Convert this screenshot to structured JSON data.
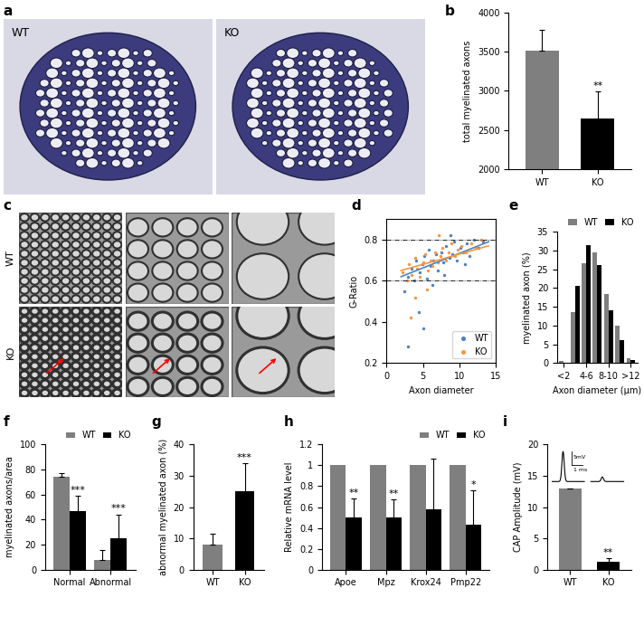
{
  "images": [
    {
      "label": "a",
      "texts": [
        "WT",
        "KO"
      ]
    },
    {
      "label": "c",
      "texts": [
        "WT",
        "KO"
      ]
    }
  ],
  "chart_data": [
    {
      "label": "b",
      "type": "bar",
      "categories": [
        "WT",
        "KO"
      ],
      "values": [
        3510,
        2640
      ],
      "errors": [
        270,
        350
      ],
      "annotations": [
        null,
        "**"
      ],
      "colors": [
        "#7f7f7f",
        "#000000"
      ],
      "y_label": "total myelinated axons",
      "ylim": [
        2000,
        4000
      ],
      "yticks": [
        2000,
        2500,
        3000,
        3500,
        4000
      ]
    },
    {
      "label": "d",
      "type": "scatter",
      "x_label": "Axon diameter",
      "y_label": "G-Ratio",
      "xlim": [
        0,
        15
      ],
      "xticks": [
        0,
        5,
        10,
        15
      ],
      "ylim": [
        0.2,
        0.9
      ],
      "yticks": [
        0.2,
        0.4,
        0.6,
        0.8
      ],
      "series": [
        {
          "name": "WT",
          "color": "#4f81bd",
          "marker": "o",
          "x": [
            2.5,
            3.0,
            3.4,
            3.8,
            4.1,
            4.5,
            4.9,
            5.2,
            5.5,
            5.8,
            6.1,
            6.4,
            6.8,
            7.1,
            7.5,
            7.8,
            8.2,
            8.6,
            9.0,
            9.3,
            9.7,
            10.1,
            10.5,
            11.0,
            11.4,
            12.0,
            12.6,
            13.2,
            6.3,
            7.9,
            4.4,
            8.8,
            10.8,
            5.0,
            3.0
          ],
          "values": [
            0.55,
            0.62,
            0.66,
            0.6,
            0.7,
            0.64,
            0.68,
            0.72,
            0.61,
            0.75,
            0.67,
            0.7,
            0.73,
            0.65,
            0.74,
            0.69,
            0.77,
            0.71,
            0.73,
            0.79,
            0.7,
            0.76,
            0.74,
            0.78,
            0.72,
            0.8,
            0.76,
            0.79,
            0.58,
            0.63,
            0.45,
            0.82,
            0.68,
            0.37,
            0.28
          ]
        },
        {
          "name": "KO",
          "color": "#f79646",
          "marker": "o",
          "x": [
            2.2,
            2.8,
            3.1,
            3.5,
            3.9,
            4.2,
            4.6,
            5.0,
            5.3,
            5.7,
            6.0,
            6.3,
            6.7,
            7.0,
            7.4,
            7.7,
            8.1,
            8.5,
            8.9,
            9.4,
            9.8,
            10.3,
            10.9,
            11.6,
            12.3,
            13.0,
            4.0,
            5.5,
            7.2,
            3.3
          ],
          "values": [
            0.64,
            0.6,
            0.68,
            0.63,
            0.71,
            0.66,
            0.62,
            0.69,
            0.73,
            0.65,
            0.7,
            0.67,
            0.74,
            0.69,
            0.72,
            0.76,
            0.7,
            0.74,
            0.78,
            0.72,
            0.75,
            0.77,
            0.74,
            0.78,
            0.76,
            0.8,
            0.52,
            0.56,
            0.82,
            0.42
          ]
        }
      ],
      "trendlines": [
        {
          "color": "#4f81bd",
          "x": [
            2,
            14
          ],
          "values": [
            0.62,
            0.79
          ]
        },
        {
          "color": "#f79646",
          "x": [
            2,
            14
          ],
          "values": [
            0.65,
            0.77
          ]
        }
      ],
      "hlines": [
        0.6,
        0.8
      ],
      "legend": "lower right"
    },
    {
      "label": "e",
      "type": "bar",
      "categories": [
        "<2",
        null,
        "4-6",
        null,
        "8-10",
        null,
        ">12"
      ],
      "series": [
        {
          "name": "WT",
          "color": "#7f7f7f",
          "values": [
            0.5,
            13.5,
            26.5,
            29.5,
            18.5,
            10,
            1.2
          ]
        },
        {
          "name": "KO",
          "color": "#000000",
          "values": [
            0,
            20.5,
            31.5,
            26,
            14,
            6,
            0.7
          ]
        }
      ],
      "x_label": "Axon diameter (μm)",
      "y_label": "myelinated axon (%)",
      "ylim": [
        0,
        35
      ],
      "yticks": [
        0,
        5,
        10,
        15,
        20,
        25,
        30,
        35
      ],
      "legend": "upper right"
    },
    {
      "label": "f",
      "type": "bar",
      "categories": [
        "Normal",
        "Abnormal"
      ],
      "series": [
        {
          "name": "WT",
          "color": "#7f7f7f",
          "values": [
            74,
            8
          ],
          "errors": [
            3,
            8
          ]
        },
        {
          "name": "KO",
          "color": "#000000",
          "values": [
            47,
            25
          ],
          "errors": [
            12,
            19
          ],
          "annotations": [
            "***",
            "***"
          ]
        }
      ],
      "y_label": "myelinated axons/area",
      "ylim": [
        0,
        100
      ],
      "yticks": [
        0,
        20,
        40,
        60,
        80,
        100
      ],
      "legend": "upper right"
    },
    {
      "label": "g",
      "type": "bar",
      "categories": [
        "WT",
        "KO"
      ],
      "values": [
        8,
        25
      ],
      "errors": [
        3.5,
        9
      ],
      "annotations": [
        null,
        "***"
      ],
      "colors": [
        "#7f7f7f",
        "#000000"
      ],
      "y_label": "abnormal myelinated axon (%)",
      "ylim": [
        0,
        40
      ],
      "yticks": [
        0,
        10,
        20,
        30,
        40
      ]
    },
    {
      "label": "h",
      "type": "bar",
      "categories": [
        "Apoe",
        "Mpz",
        "Krox24",
        "Pmp22"
      ],
      "series": [
        {
          "name": "WT",
          "color": "#7f7f7f",
          "values": [
            1,
            1,
            1,
            1
          ]
        },
        {
          "name": "KO",
          "color": "#000000",
          "values": [
            0.5,
            0.5,
            0.58,
            0.43
          ],
          "errors": [
            0.18,
            0.17,
            0.48,
            0.33
          ],
          "annotations": [
            "**",
            "**",
            null,
            "*"
          ]
        }
      ],
      "y_label": "Relative mRNA level",
      "ylim": [
        0,
        1.2
      ],
      "yticks": [
        0,
        0.2,
        0.4,
        0.6,
        0.8,
        1,
        1.2
      ],
      "legend": "upper right"
    },
    {
      "label": "i",
      "type": "bar",
      "categories": [
        "WT",
        "KO"
      ],
      "values": [
        13,
        1.3
      ],
      "errors": [
        null,
        0.5
      ],
      "annotations": [
        null,
        "**"
      ],
      "colors": [
        "#7f7f7f",
        "#000000"
      ],
      "y_label": "CAP Amplitude (mV)",
      "ylim": [
        0,
        20
      ],
      "yticks": [
        0,
        5,
        10,
        15,
        20
      ],
      "inset_texts": [
        "5mV",
        "1 ms"
      ]
    }
  ]
}
